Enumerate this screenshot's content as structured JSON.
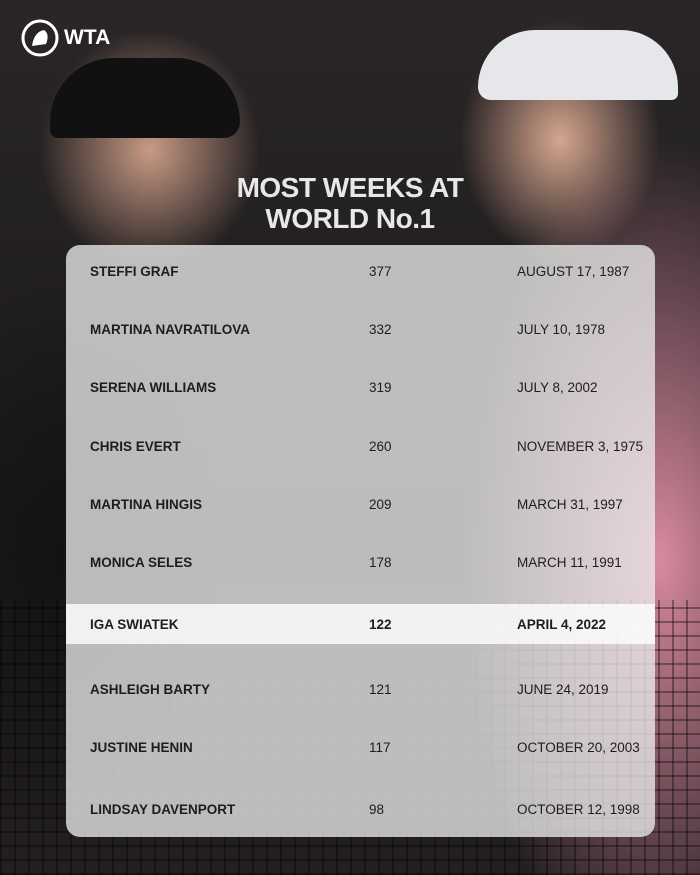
{
  "brand": {
    "logo_text": "WTA"
  },
  "title_lines": [
    "MOST WEEKS AT",
    "WORLD No.1"
  ],
  "highlight_color": "#ffffff",
  "rows": [
    {
      "name": "STEFFI GRAF",
      "weeks": "377",
      "date": "AUGUST 17, 1987"
    },
    {
      "name": "MARTINA NAVRATILOVA",
      "weeks": "332",
      "date": "JULY 10, 1978"
    },
    {
      "name": "SERENA WILLIAMS",
      "weeks": "319",
      "date": "JULY 8, 2002"
    },
    {
      "name": "CHRIS EVERT",
      "weeks": "260",
      "date": "NOVEMBER 3, 1975"
    },
    {
      "name": "MARTINA HINGIS",
      "weeks": "209",
      "date": "MARCH 31, 1997"
    },
    {
      "name": "MONICA SELES",
      "weeks": "178",
      "date": "MARCH 11, 1991"
    },
    {
      "name": "IGA SWIATEK",
      "weeks": "122",
      "date": "APRIL 4, 2022",
      "highlighted": true
    },
    {
      "name": "ASHLEIGH BARTY",
      "weeks": "121",
      "date": "JUNE 24, 2019"
    },
    {
      "name": "JUSTINE HENIN",
      "weeks": "117",
      "date": "OCTOBER 20, 2003"
    },
    {
      "name": "LINDSAY DAVENPORT",
      "weeks": "98",
      "date": "OCTOBER 12, 1998"
    }
  ]
}
